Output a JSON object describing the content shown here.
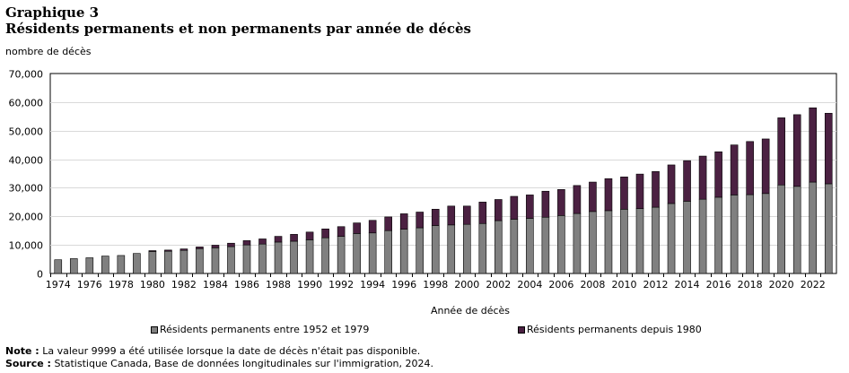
{
  "header": {
    "title": "Graphique 3",
    "subtitle": "Résidents permanents et non permanents par année de décès"
  },
  "chart_data": {
    "type": "bar",
    "stacked": true,
    "ylabel": "nombre de décès",
    "xlabel": "Année de décès",
    "ylim": [
      0,
      70000
    ],
    "yticks": [
      "0",
      "10,000",
      "20,000",
      "30,000",
      "40,000",
      "50,000",
      "60,000",
      "70,000"
    ],
    "grid": true,
    "legend_position": "bottom",
    "categories": [
      "1974",
      "1975",
      "1976",
      "1977",
      "1978",
      "1979",
      "1980",
      "1981",
      "1982",
      "1983",
      "1984",
      "1985",
      "1986",
      "1987",
      "1988",
      "1989",
      "1990",
      "1991",
      "1992",
      "1993",
      "1994",
      "1995",
      "1996",
      "1997",
      "1998",
      "1999",
      "2000",
      "2001",
      "2002",
      "2003",
      "2004",
      "2005",
      "2006",
      "2007",
      "2008",
      "2009",
      "2010",
      "2011",
      "2012",
      "2013",
      "2014",
      "2015",
      "2016",
      "2017",
      "2018",
      "2019",
      "2020",
      "2021",
      "2022",
      "2023"
    ],
    "xtick_labels": [
      "1974",
      "1976",
      "1978",
      "1980",
      "1982",
      "1984",
      "1986",
      "1988",
      "1990",
      "1992",
      "1994",
      "1996",
      "1998",
      "2000",
      "2002",
      "2004",
      "2006",
      "2008",
      "2010",
      "2012",
      "2014",
      "2016",
      "2018",
      "2020",
      "2022"
    ],
    "series": [
      {
        "name": "Résidents permanents entre 1952 et 1979",
        "color": "#808080",
        "values": [
          4800,
          5200,
          5500,
          6100,
          6300,
          7000,
          7700,
          7800,
          8100,
          8700,
          9000,
          9400,
          10000,
          10300,
          11000,
          11300,
          11800,
          12500,
          13000,
          14000,
          14200,
          15000,
          15500,
          16000,
          16800,
          17000,
          17200,
          17500,
          18500,
          19000,
          19300,
          19700,
          20300,
          21000,
          21700,
          22000,
          22500,
          22700,
          23200,
          24500,
          25300,
          26000,
          26700,
          27500,
          27600,
          28000,
          31000,
          30500,
          32000,
          31400
        ]
      },
      {
        "name": "Résidents permanents depuis 1980",
        "color": "#4b2142",
        "values": [
          0,
          0,
          0,
          0,
          0,
          0,
          300,
          400,
          500,
          600,
          900,
          1200,
          1500,
          1800,
          2000,
          2400,
          2700,
          3100,
          3400,
          3700,
          4400,
          4800,
          5400,
          5500,
          5700,
          6600,
          6400,
          7500,
          7400,
          8000,
          8200,
          9100,
          9100,
          9800,
          10300,
          11200,
          11300,
          12100,
          12500,
          13500,
          14200,
          15100,
          15900,
          17500,
          18600,
          19100,
          23500,
          25100,
          26000,
          24700
        ]
      }
    ]
  },
  "notes": {
    "note_label": "Note :",
    "note_text": "La valeur 9999 a été utilisée lorsque la date de décès n'était pas disponible.",
    "source_label": "Source :",
    "source_text": "Statistique Canada, Base de données longitudinales sur l'immigration, 2024."
  }
}
